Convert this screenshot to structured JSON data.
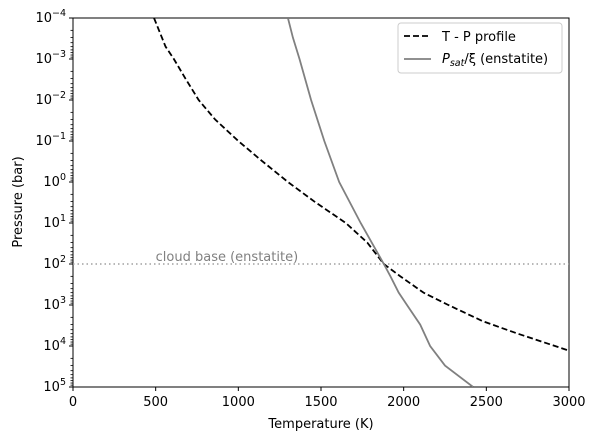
{
  "chart_data": {
    "type": "line",
    "xlabel": "Temperature (K)",
    "ylabel": "Pressure (bar)",
    "xlim": [
      0,
      3000
    ],
    "ylim": [
      0.0001,
      100000
    ],
    "yscale": "log",
    "y_inverted": true,
    "xticks": [
      0,
      500,
      1000,
      1500,
      2000,
      2500,
      3000
    ],
    "yticks": [
      {
        "base": "10",
        "exp": "−4",
        "value": 0.0001
      },
      {
        "base": "10",
        "exp": "−3",
        "value": 0.001
      },
      {
        "base": "10",
        "exp": "−2",
        "value": 0.01
      },
      {
        "base": "10",
        "exp": "−1",
        "value": 0.1
      },
      {
        "base": "10",
        "exp": "0",
        "value": 1
      },
      {
        "base": "10",
        "exp": "1",
        "value": 10
      },
      {
        "base": "10",
        "exp": "2",
        "value": 100
      },
      {
        "base": "10",
        "exp": "3",
        "value": 1000
      },
      {
        "base": "10",
        "exp": "4",
        "value": 10000
      },
      {
        "base": "10",
        "exp": "5",
        "value": 100000
      }
    ],
    "legend_position": "top-right",
    "series": [
      {
        "name": "T - P profile",
        "style": "dashed",
        "color": "#000000",
        "points": [
          [
            490,
            0.0001
          ],
          [
            520,
            0.0002
          ],
          [
            560,
            0.0005
          ],
          [
            610,
            0.001
          ],
          [
            680,
            0.003
          ],
          [
            760,
            0.01
          ],
          [
            860,
            0.03
          ],
          [
            1000,
            0.1
          ],
          [
            1140,
            0.3
          ],
          [
            1300,
            1
          ],
          [
            1460,
            3
          ],
          [
            1650,
            10
          ],
          [
            1780,
            30
          ],
          [
            1880,
            100
          ],
          [
            1980,
            200
          ],
          [
            2120,
            500
          ],
          [
            2270,
            1000
          ],
          [
            2480,
            2500
          ],
          [
            2690,
            5000
          ],
          [
            3000,
            13000
          ]
        ]
      },
      {
        "name_parts": [
          "P",
          "sat",
          "/ξ (enstatite)"
        ],
        "style": "solid",
        "color": "#808080",
        "points": [
          [
            1300,
            0.0001
          ],
          [
            1330,
            0.0003
          ],
          [
            1370,
            0.001
          ],
          [
            1440,
            0.01
          ],
          [
            1520,
            0.1
          ],
          [
            1610,
            1
          ],
          [
            1740,
            10
          ],
          [
            1880,
            100
          ],
          [
            1920,
            200
          ],
          [
            1970,
            500
          ],
          [
            2020,
            1000
          ],
          [
            2100,
            3000
          ],
          [
            2160,
            10000
          ],
          [
            2250,
            30000
          ],
          [
            2420,
            100000
          ]
        ]
      }
    ],
    "reference_line": {
      "value": 100,
      "style": "dotted",
      "color": "#a0a0a0"
    },
    "annotation": {
      "text": "cloud base (enstatite)",
      "x": 500,
      "y": 90,
      "color": "#808080"
    }
  }
}
